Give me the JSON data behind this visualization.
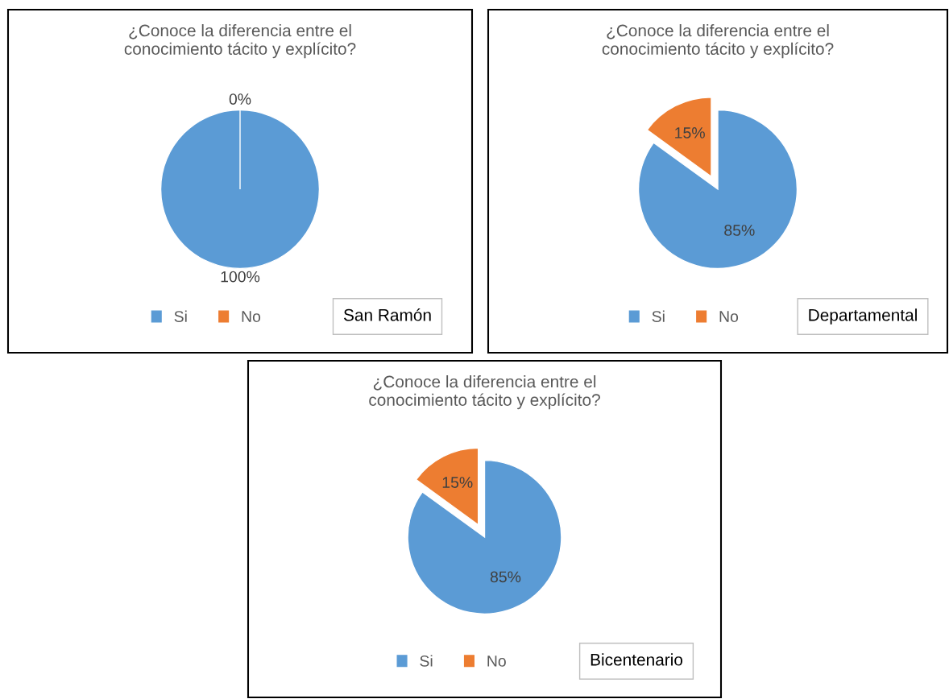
{
  "chart_data": [
    {
      "type": "pie",
      "title": "¿Conoce la diferencia entre el\nconocimiento tácito y explícito?",
      "categories": [
        "Si",
        "No"
      ],
      "values": [
        100,
        0
      ],
      "value_labels": [
        "100%",
        "0%"
      ],
      "colors": [
        "#5b9bd5",
        "#ed7d31"
      ],
      "legend": "bottom",
      "annotations": [
        "San Ramón"
      ]
    },
    {
      "type": "pie",
      "title": "¿Conoce la diferencia entre el\nconocimiento tácito y explícito?",
      "categories": [
        "Si",
        "No"
      ],
      "values": [
        85,
        15
      ],
      "value_labels": [
        "85%",
        "15%"
      ],
      "colors": [
        "#5b9bd5",
        "#ed7d31"
      ],
      "legend": "bottom",
      "annotations": [
        "Departamental"
      ]
    },
    {
      "type": "pie",
      "title": "¿Conoce la diferencia entre el\nconocimiento tácito y explícito?",
      "categories": [
        "Si",
        "No"
      ],
      "values": [
        85,
        15
      ],
      "value_labels": [
        "85%",
        "15%"
      ],
      "colors": [
        "#5b9bd5",
        "#ed7d31"
      ],
      "legend": "bottom",
      "annotations": [
        "Bicentenario"
      ]
    }
  ]
}
